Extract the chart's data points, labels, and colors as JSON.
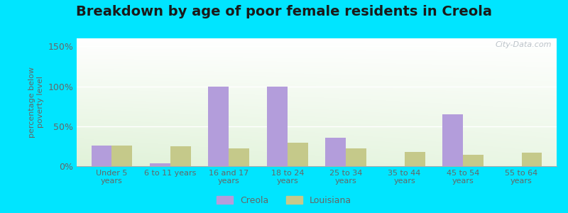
{
  "title": "Breakdown by age of poor female residents in Creola",
  "categories": [
    "Under 5\nyears",
    "6 to 11 years",
    "16 and 17\nyears",
    "18 to 24\nyears",
    "25 to 34\nyears",
    "35 to 44\nyears",
    "45 to 54\nyears",
    "55 to 64\nyears"
  ],
  "creola_values": [
    26,
    4,
    100,
    100,
    36,
    0,
    65,
    0
  ],
  "louisiana_values": [
    26,
    25,
    22,
    29,
    22,
    18,
    14,
    17
  ],
  "creola_color": "#b39ddb",
  "louisiana_color": "#c5c98a",
  "ylabel": "percentage below\npoverty level",
  "ylim": [
    0,
    160
  ],
  "yticks": [
    0,
    50,
    100,
    150
  ],
  "ytick_labels": [
    "0%",
    "50%",
    "100%",
    "150%"
  ],
  "outer_background": "#00e5ff",
  "title_fontsize": 14,
  "bar_width": 0.35,
  "legend_labels": [
    "Creola",
    "Louisiana"
  ],
  "watermark": "City-Data.com",
  "grid_color": "#cccccc",
  "text_color": "#666666"
}
